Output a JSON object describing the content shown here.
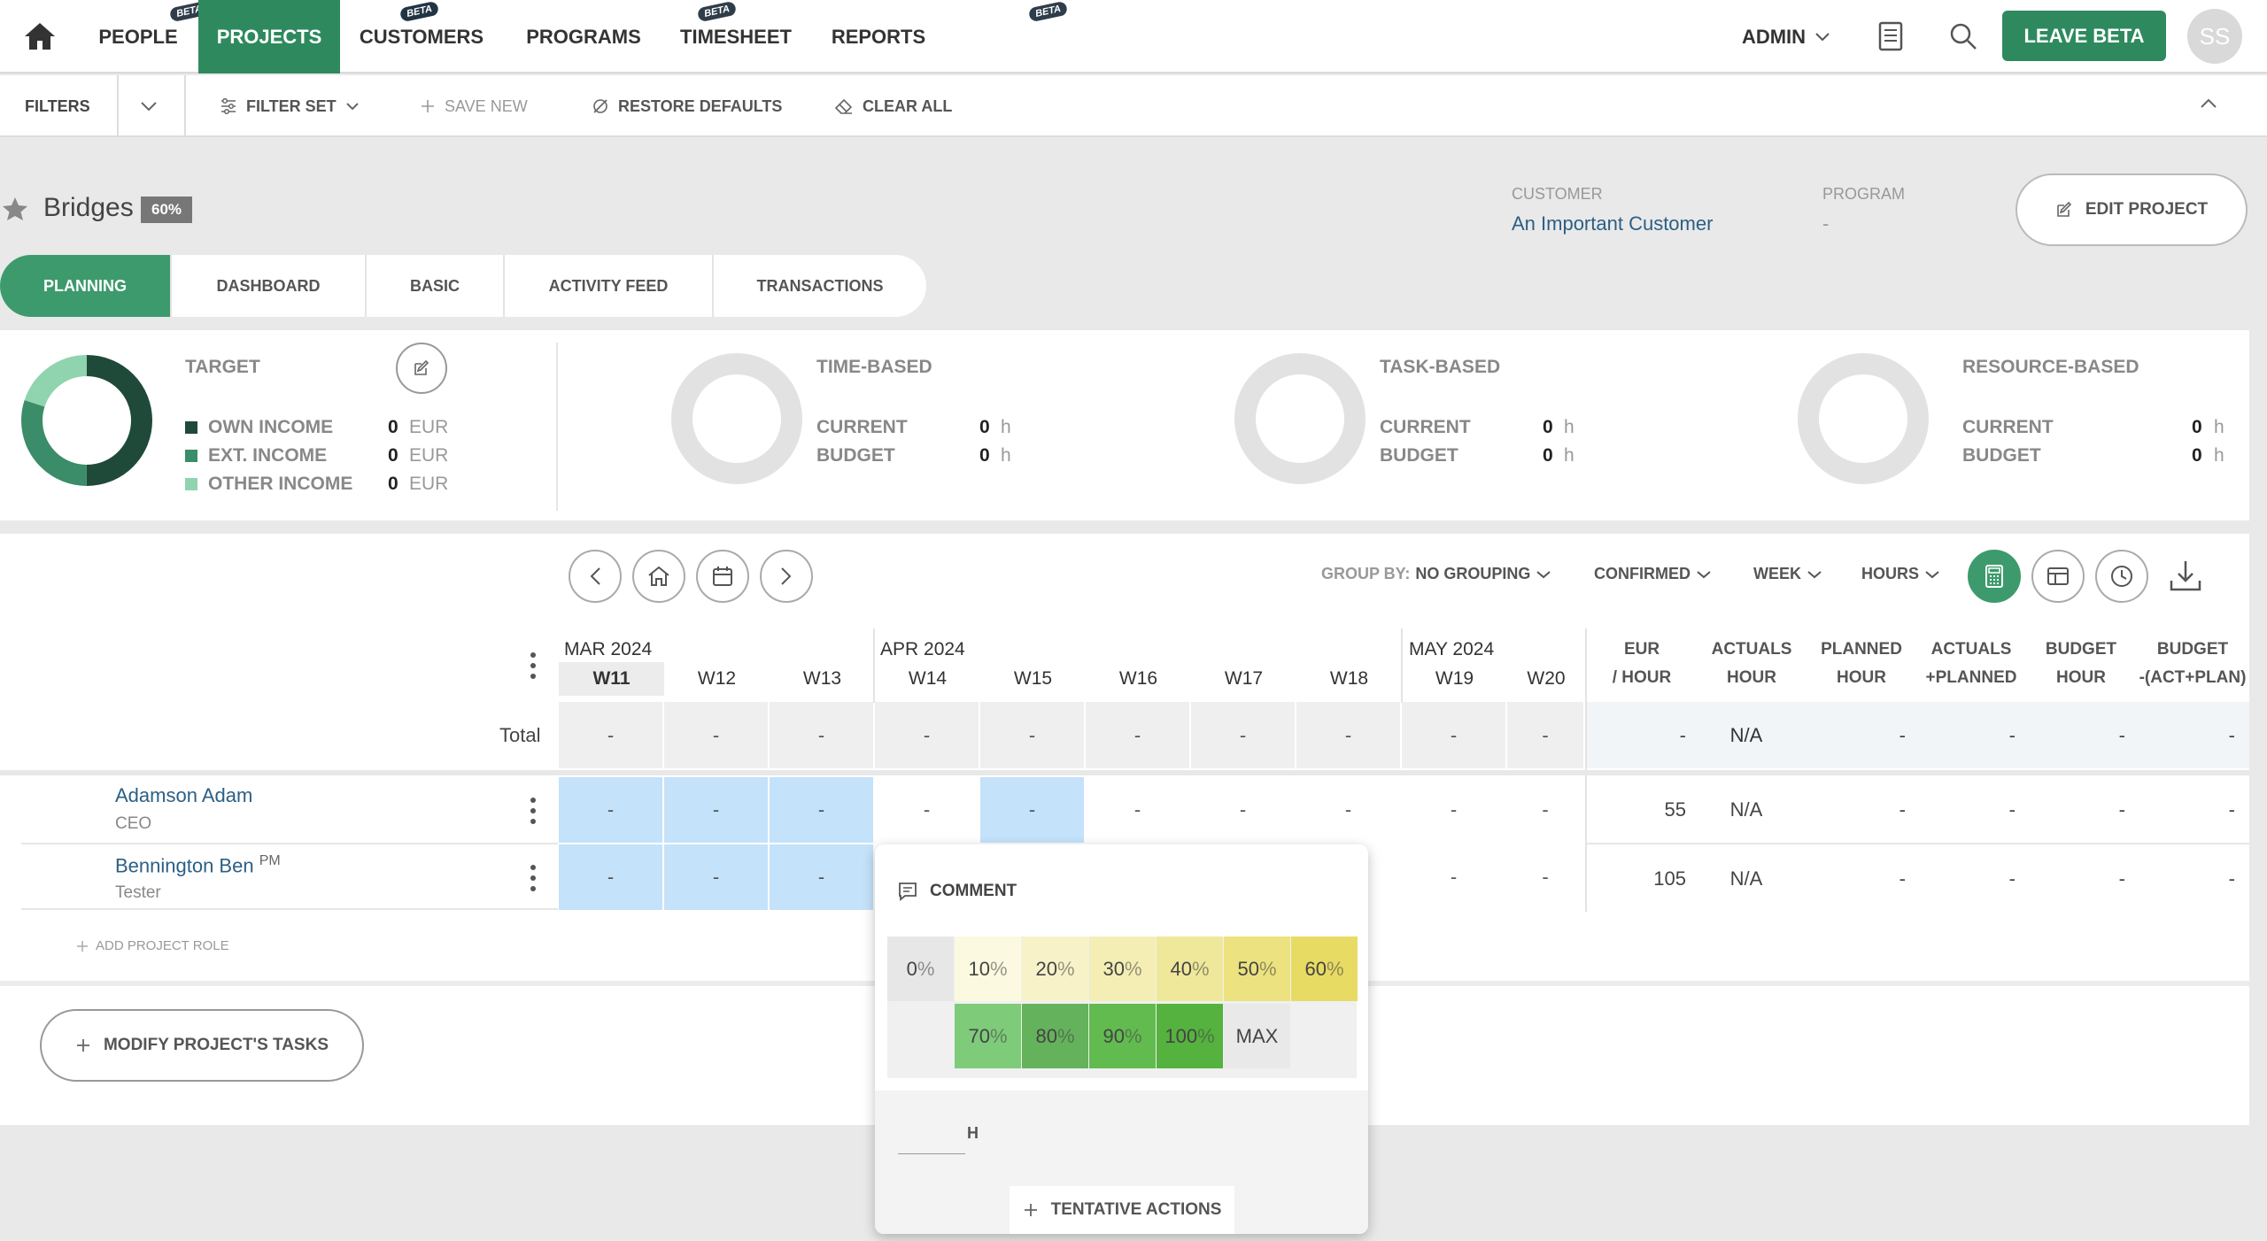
{
  "nav": {
    "items": [
      {
        "label": "PEOPLE",
        "beta": "BETA"
      },
      {
        "label": "PROJECTS",
        "beta": "BETA"
      },
      {
        "label": "CUSTOMERS",
        "beta": "BETA"
      },
      {
        "label": "PROGRAMS",
        "beta": "BETA"
      },
      {
        "label": "TIMESHEET"
      },
      {
        "label": "REPORTS"
      }
    ],
    "admin": "ADMIN",
    "leave_beta": "LEAVE BETA",
    "avatar": "SS"
  },
  "filters": {
    "label": "FILTERS",
    "filter_set": "FILTER SET",
    "save_new": "SAVE NEW",
    "restore_defaults": "RESTORE DEFAULTS",
    "clear_all": "CLEAR ALL"
  },
  "project": {
    "name": "Bridges",
    "progress_badge": "60%",
    "customer_label": "CUSTOMER",
    "customer_value": "An Important Customer",
    "program_label": "PROGRAM",
    "program_value": "-",
    "edit_button": "EDIT PROJECT"
  },
  "tabs": [
    "PLANNING",
    "DASHBOARD",
    "BASIC",
    "ACTIVITY FEED",
    "TRANSACTIONS"
  ],
  "stats": {
    "target": {
      "title": "TARGET",
      "rows": [
        {
          "label": "OWN INCOME",
          "value": "0",
          "unit": "EUR",
          "color": "#1f4a3a",
          "share": 0.5
        },
        {
          "label": "EXT. INCOME",
          "value": "0",
          "unit": "EUR",
          "color": "#3b8c68",
          "share": 0.3
        },
        {
          "label": "OTHER INCOME",
          "value": "0",
          "unit": "EUR",
          "color": "#8fd4ae",
          "share": 0.2
        }
      ]
    },
    "time_based": {
      "title": "TIME-BASED",
      "current_label": "CURRENT",
      "current": "0",
      "budget_label": "BUDGET",
      "budget": "0",
      "unit": "h"
    },
    "task_based": {
      "title": "TASK-BASED",
      "current_label": "CURRENT",
      "current": "0",
      "budget_label": "BUDGET",
      "budget": "0",
      "unit": "h"
    },
    "resource_based": {
      "title": "RESOURCE-BASED",
      "current_label": "CURRENT",
      "current": "0",
      "budget_label": "BUDGET",
      "budget": "0",
      "unit": "h"
    }
  },
  "planning": {
    "group_by_label": "GROUP BY:",
    "group_by_value": "NO GROUPING",
    "status": "CONFIRMED",
    "period": "WEEK",
    "unit": "HOURS",
    "months": [
      "MAR 2024",
      "APR 2024",
      "MAY 2024"
    ],
    "weeks": [
      "W11",
      "W12",
      "W13",
      "W14",
      "W15",
      "W16",
      "W17",
      "W18",
      "W19",
      "W20"
    ],
    "summary_headers": [
      {
        "l1": "EUR",
        "l2": "/ HOUR"
      },
      {
        "l1": "ACTUALS",
        "l2": "HOUR"
      },
      {
        "l1": "PLANNED",
        "l2": "HOUR"
      },
      {
        "l1": "ACTUALS",
        "l2": "+PLANNED"
      },
      {
        "l1": "BUDGET",
        "l2": "HOUR"
      },
      {
        "l1": "BUDGET",
        "l2": "-(ACT+PLAN)"
      }
    ],
    "total_label": "Total",
    "total_summary": [
      "-",
      "N/A",
      "-",
      "-",
      "-",
      "-"
    ],
    "cell_dash": "-",
    "rows": [
      {
        "name": "Adamson Adam",
        "role": "CEO",
        "tag": "",
        "rate": "55",
        "actuals": "N/A",
        "rest": [
          "-",
          "-",
          "-",
          "-"
        ]
      },
      {
        "name": "Bennington Ben",
        "role": "Tester",
        "tag": "PM",
        "rate": "105",
        "actuals": "N/A",
        "rest": [
          "-",
          "-",
          "-",
          "-"
        ]
      }
    ],
    "add_role": "ADD PROJECT ROLE",
    "modify_tasks": "MODIFY PROJECT'S TASKS"
  },
  "popup": {
    "comment": "COMMENT",
    "percent_row1": [
      "0",
      "10",
      "20",
      "30",
      "40",
      "50",
      "60"
    ],
    "percent_row2": [
      "70",
      "80",
      "90",
      "100"
    ],
    "percent_sign": "%",
    "max": "MAX",
    "hours_unit": "H",
    "tentative": "TENTATIVE ACTIONS"
  }
}
